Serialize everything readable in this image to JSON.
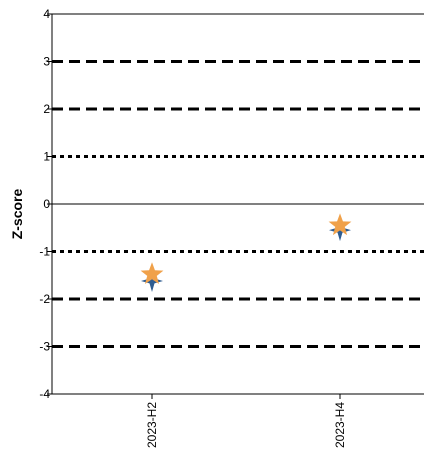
{
  "chart_data": {
    "type": "scatter",
    "title": "",
    "xlabel": "",
    "ylabel": "Z-score",
    "categories": [
      "2023-H2",
      "2023-H4"
    ],
    "ylim": [
      -4,
      4
    ],
    "yticks": [
      "-4",
      "-3",
      "-2",
      "-1",
      "0",
      "1",
      "2",
      "3",
      "4"
    ],
    "reference_lines": [
      {
        "y": 3,
        "style": "dashed"
      },
      {
        "y": 2,
        "style": "dashed"
      },
      {
        "y": 1,
        "style": "dotted"
      },
      {
        "y": 0,
        "style": "solid"
      },
      {
        "y": -1,
        "style": "dotted"
      },
      {
        "y": -2,
        "style": "dashed"
      },
      {
        "y": -3,
        "style": "dashed"
      }
    ],
    "series": [
      {
        "marker": "diamond-star",
        "color": "#2f5d91",
        "values": [
          -1.62,
          -0.55
        ]
      },
      {
        "marker": "star",
        "color": "#f0a14a",
        "values": [
          -1.48,
          -0.45
        ]
      }
    ],
    "grid": false,
    "legend": "none"
  }
}
